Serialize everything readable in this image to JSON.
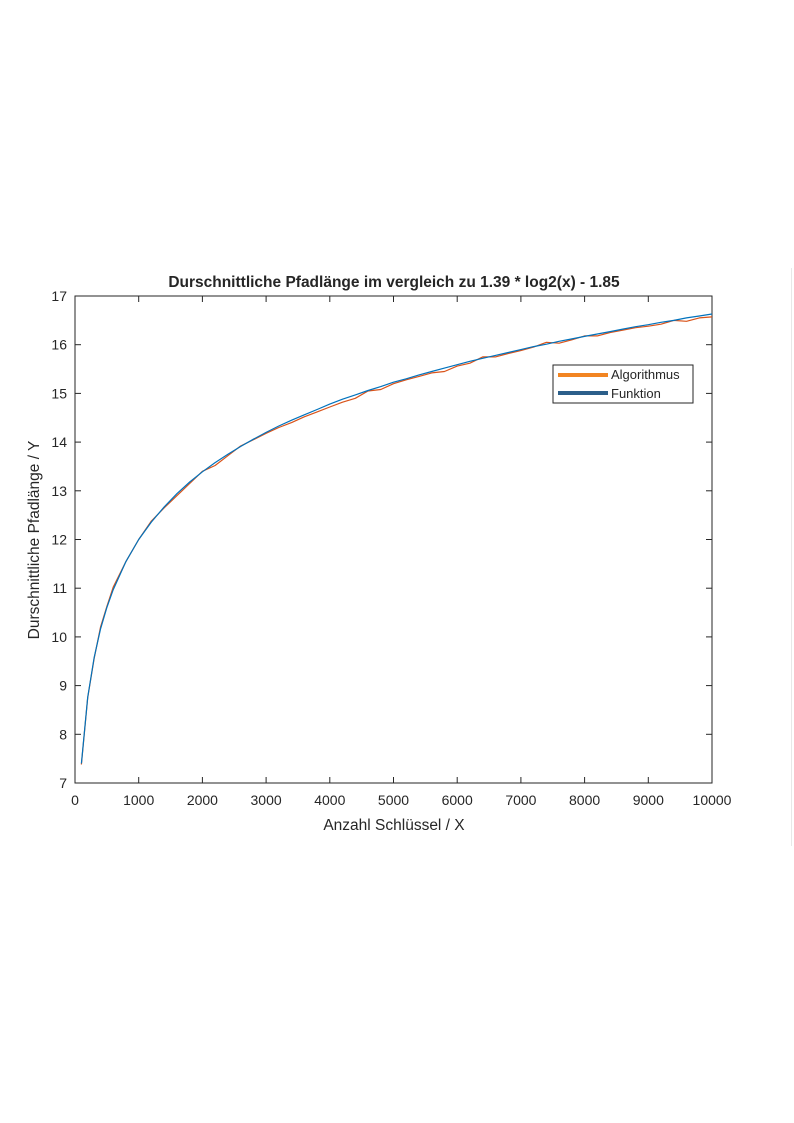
{
  "chart_data": {
    "type": "line",
    "title": "Durschnittliche Pfadlänge im vergleich zu 1.39 * log2(x) - 1.85",
    "xlabel": "Anzahl Schlüssel / X",
    "ylabel": "Durschnittliche Pfadlänge / Y",
    "xlim": [
      0,
      10000
    ],
    "ylim": [
      7,
      17
    ],
    "xticks": [
      0,
      1000,
      2000,
      3000,
      4000,
      5000,
      6000,
      7000,
      8000,
      9000,
      10000
    ],
    "yticks": [
      7,
      8,
      9,
      10,
      11,
      12,
      13,
      14,
      15,
      16,
      17
    ],
    "grid": false,
    "legend_position": "top-right",
    "series": [
      {
        "name": "Algorithmus",
        "legend_color": "#f28522",
        "line_color": "#d95319",
        "x": [
          100,
          200,
          300,
          400,
          500,
          600,
          800,
          1000,
          1200,
          1400,
          1600,
          1800,
          2000,
          2200,
          2400,
          2600,
          2800,
          3000,
          3200,
          3400,
          3600,
          3800,
          4000,
          4200,
          4400,
          4600,
          4800,
          5000,
          5200,
          5400,
          5600,
          5800,
          6000,
          6200,
          6400,
          6600,
          6800,
          7000,
          7200,
          7400,
          7600,
          7800,
          8000,
          8200,
          8400,
          8600,
          8800,
          9000,
          9200,
          9400,
          9600,
          9800,
          10000
        ],
        "y": [
          7.38,
          8.75,
          9.55,
          10.2,
          10.62,
          11.02,
          11.55,
          12.0,
          12.38,
          12.65,
          12.9,
          13.15,
          13.4,
          13.52,
          13.72,
          13.92,
          14.05,
          14.18,
          14.3,
          14.4,
          14.52,
          14.62,
          14.72,
          14.82,
          14.9,
          15.05,
          15.08,
          15.2,
          15.28,
          15.35,
          15.42,
          15.45,
          15.56,
          15.62,
          15.75,
          15.75,
          15.82,
          15.88,
          15.95,
          16.05,
          16.03,
          16.1,
          16.18,
          16.18,
          16.25,
          16.3,
          16.35,
          16.38,
          16.42,
          16.5,
          16.48,
          16.55,
          16.57
        ]
      },
      {
        "name": "Funktion",
        "legend_color": "#2c5f8a",
        "line_color": "#0072bd",
        "x": [
          100,
          200,
          300,
          400,
          500,
          600,
          800,
          1000,
          1200,
          1400,
          1600,
          1800,
          2000,
          2200,
          2400,
          2600,
          2800,
          3000,
          3200,
          3400,
          3600,
          3800,
          4000,
          4200,
          4400,
          4600,
          4800,
          5000,
          5200,
          5400,
          5600,
          5800,
          6000,
          6200,
          6400,
          6600,
          6800,
          7000,
          7200,
          7400,
          7600,
          7800,
          8000,
          8200,
          8400,
          8600,
          8800,
          9000,
          9200,
          9400,
          9600,
          9800,
          10000
        ],
        "y": [
          7.4,
          8.76,
          9.57,
          10.16,
          10.6,
          10.97,
          11.55,
          12.0,
          12.36,
          12.67,
          12.94,
          13.18,
          13.39,
          13.58,
          13.75,
          13.91,
          14.06,
          14.2,
          14.33,
          14.45,
          14.56,
          14.67,
          14.78,
          14.88,
          14.97,
          15.06,
          15.14,
          15.23,
          15.3,
          15.38,
          15.45,
          15.52,
          15.59,
          15.66,
          15.72,
          15.78,
          15.84,
          15.9,
          15.96,
          16.01,
          16.07,
          16.12,
          16.17,
          16.22,
          16.27,
          16.32,
          16.37,
          16.41,
          16.46,
          16.5,
          16.55,
          16.59,
          16.63
        ]
      }
    ]
  }
}
